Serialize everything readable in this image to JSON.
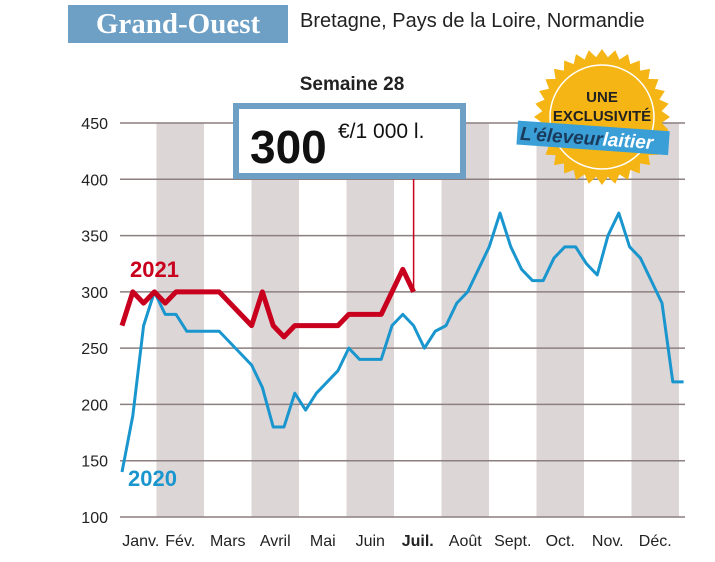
{
  "header": {
    "title": "Grand-Ouest",
    "subtitle": "Bretagne, Pays de la Loire, Normandie"
  },
  "badge": {
    "line1": "UNE",
    "line2": "EXCLUSIVITÉ",
    "brand_a": "L'éleveur",
    "brand_b": "laitier",
    "color": "#f5b514",
    "brand_color": "#3a9fd6"
  },
  "chart_data": {
    "type": "line",
    "title": "Semaine 28",
    "callout": {
      "value": "300",
      "unit": "€/1 000 l.",
      "week": 28
    },
    "ylim": [
      100,
      450
    ],
    "yticks": [
      100,
      150,
      200,
      250,
      300,
      350,
      400,
      450
    ],
    "grid": true,
    "months": [
      "Janv.",
      "Fév.",
      "Mars",
      "Avril",
      "Mai",
      "Juin",
      "Juil.",
      "Août",
      "Sept.",
      "Oct.",
      "Nov.",
      "Déc."
    ],
    "highlight_month": "Juil.",
    "series": [
      {
        "name": "2020",
        "color": "#1a96cf",
        "values": [
          140,
          190,
          270,
          300,
          280,
          280,
          265,
          265,
          265,
          265,
          255,
          245,
          235,
          215,
          180,
          180,
          210,
          195,
          210,
          220,
          230,
          250,
          240,
          240,
          240,
          270,
          280,
          270,
          250,
          265,
          270,
          290,
          300,
          320,
          340,
          370,
          340,
          320,
          310,
          310,
          330,
          340,
          340,
          325,
          315,
          350,
          370,
          340,
          330,
          310,
          290,
          220,
          220
        ]
      },
      {
        "name": "2021",
        "color": "#c8001e",
        "values": [
          270,
          300,
          290,
          300,
          290,
          300,
          300,
          300,
          300,
          300,
          290,
          280,
          270,
          300,
          270,
          260,
          270,
          270,
          270,
          270,
          270,
          280,
          280,
          280,
          280,
          300,
          320,
          300
        ]
      }
    ]
  }
}
